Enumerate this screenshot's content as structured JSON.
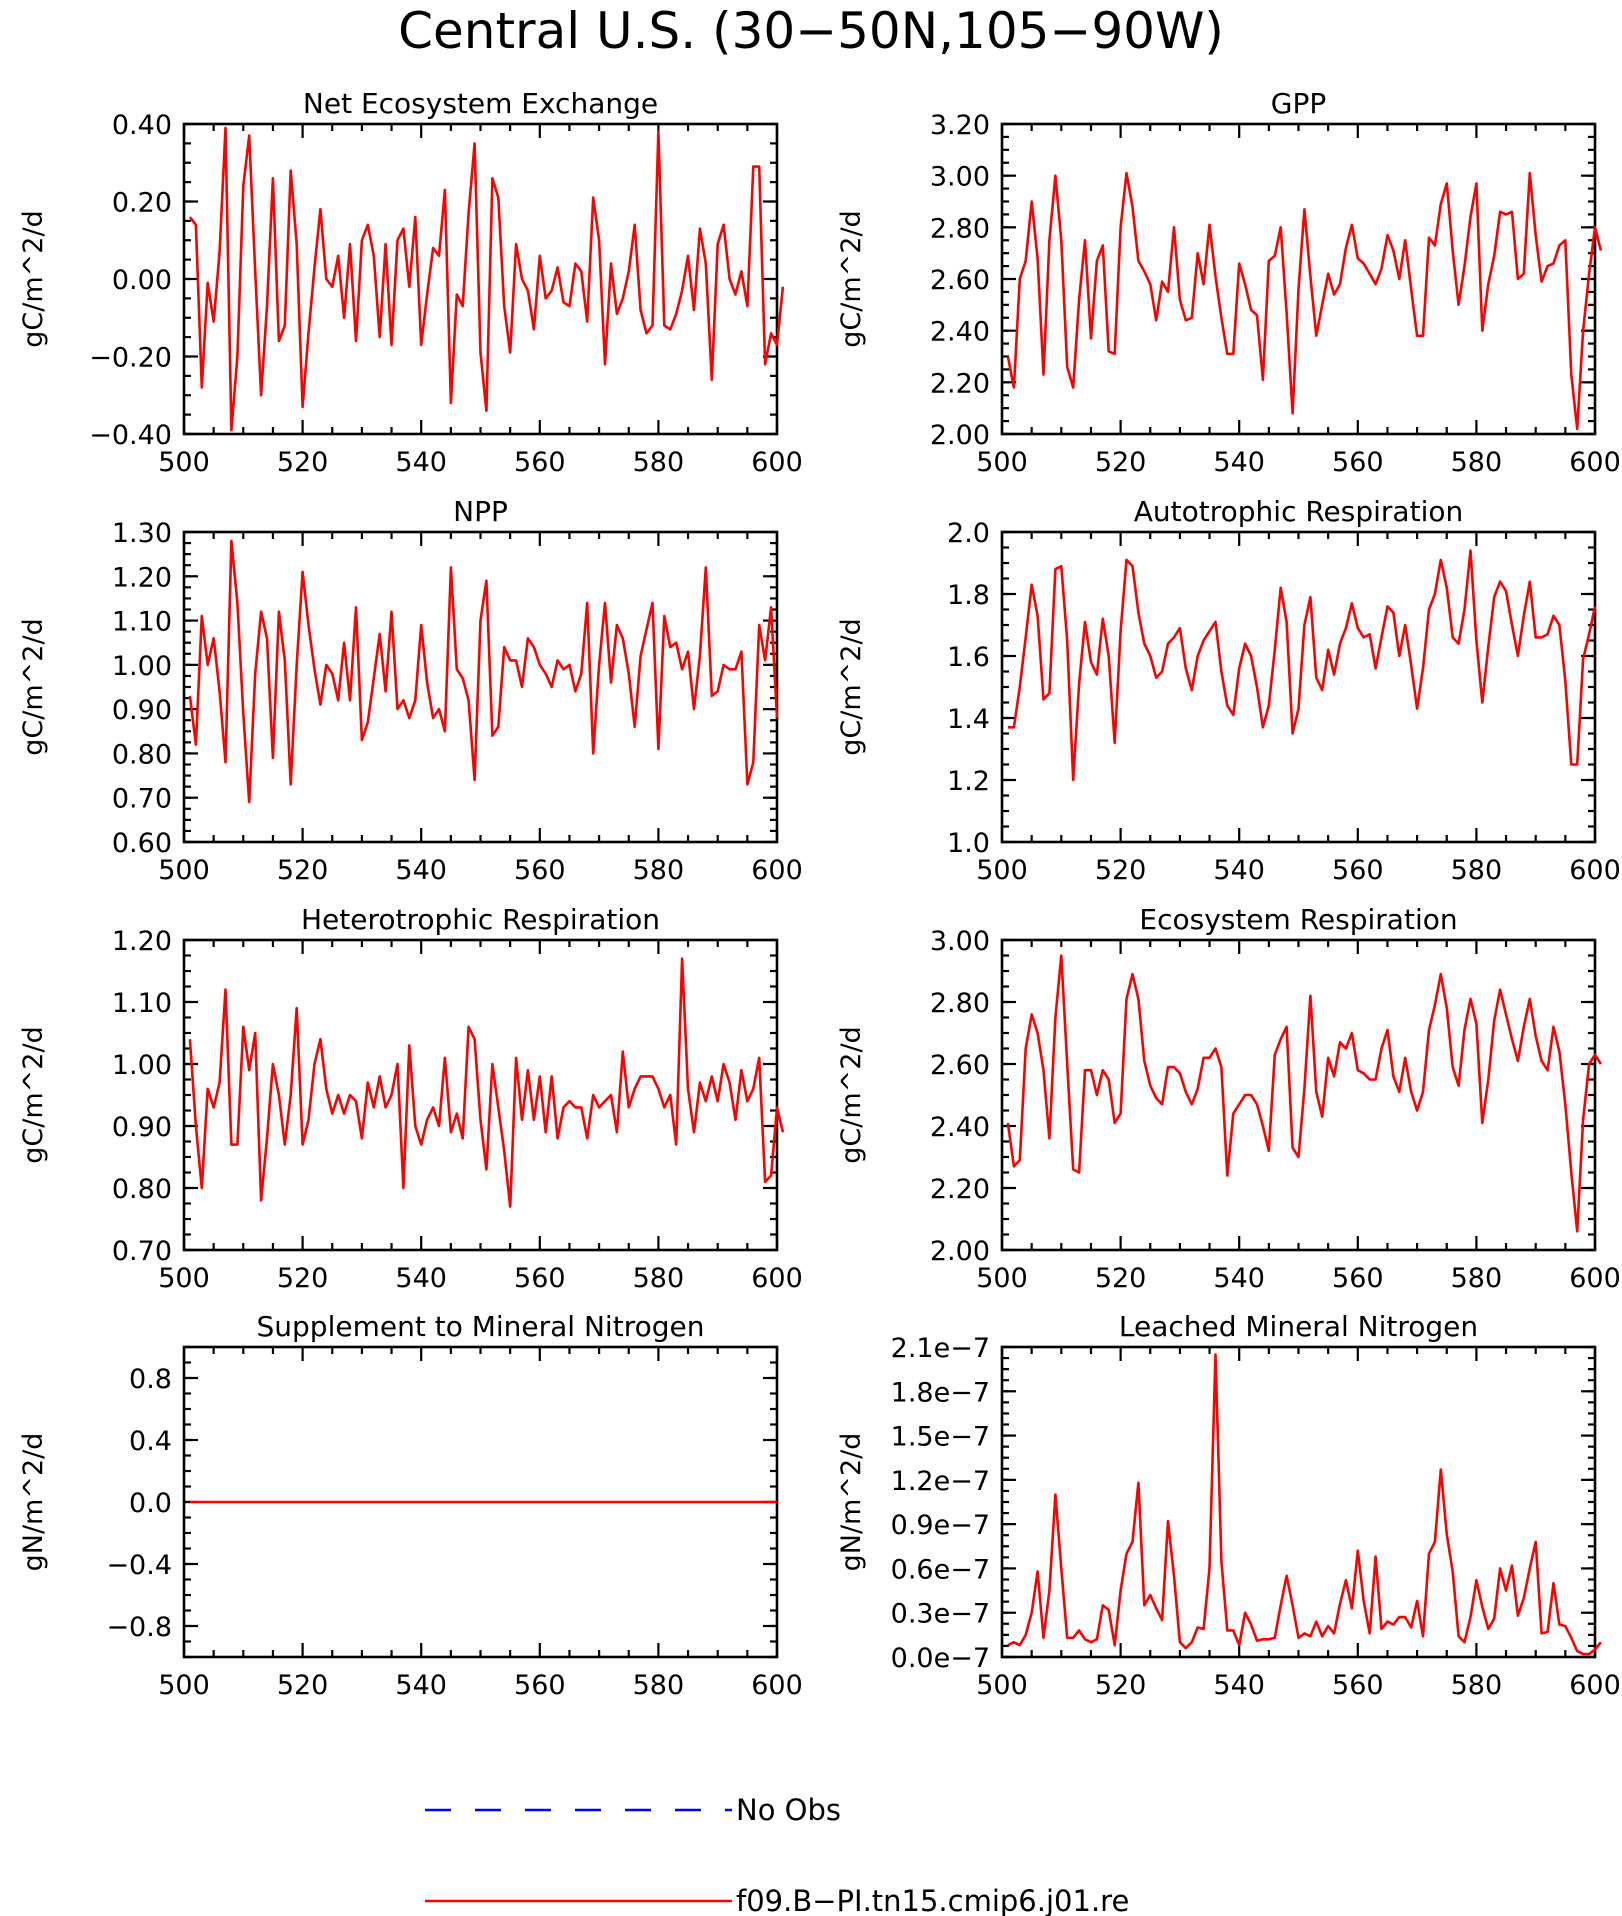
{
  "title": "Central U.S. (30−50N,105−90W)",
  "colors": {
    "model": "#ff0000",
    "obs": "#0000ff"
  },
  "legend": {
    "obs_label": "No Obs",
    "model_label": "f09.B−PI.tn15.cmip6.j01.re"
  },
  "chart_data": [
    {
      "type": "line",
      "title": "Net Ecosystem Exchange",
      "ylabel": "gC/m^2/d",
      "xlim": [
        500,
        600
      ],
      "ylim": [
        -0.4,
        0.4
      ],
      "xticks": [
        "500",
        "520",
        "540",
        "560",
        "580",
        "600"
      ],
      "yticks": [
        "−0.40",
        "−0.20",
        "0.00",
        "0.20",
        "0.40"
      ],
      "series": [
        {
          "values": [
            0.16,
            0.14,
            -0.28,
            -0.01,
            -0.11,
            0.07,
            0.39,
            -0.39,
            -0.2,
            0.24,
            0.37,
            0.02,
            -0.3,
            -0.07,
            0.26,
            -0.16,
            -0.12,
            0.28,
            0.09,
            -0.33,
            -0.14,
            0.03,
            0.18,
            0.0,
            -0.02,
            0.06,
            -0.1,
            0.09,
            -0.16,
            0.1,
            0.14,
            0.06,
            -0.15,
            0.09,
            -0.17,
            0.1,
            0.13,
            -0.02,
            0.16,
            -0.17,
            -0.04,
            0.08,
            0.06,
            0.23,
            -0.32,
            -0.04,
            -0.07,
            0.17,
            0.35,
            -0.19,
            -0.34,
            0.26,
            0.21,
            -0.07,
            -0.19,
            0.09,
            0.0,
            -0.03,
            -0.13,
            0.06,
            -0.05,
            -0.03,
            0.03,
            -0.06,
            -0.07,
            0.04,
            0.02,
            -0.11,
            0.21,
            0.1,
            -0.22,
            0.04,
            -0.09,
            -0.05,
            0.02,
            0.14,
            -0.08,
            -0.14,
            -0.12,
            0.38,
            -0.12,
            -0.13,
            -0.09,
            -0.03,
            0.06,
            -0.08,
            0.13,
            0.04,
            -0.26,
            0.09,
            0.14,
            0.0,
            -0.04,
            0.02,
            -0.07,
            0.29,
            0.29,
            -0.22,
            -0.14,
            -0.17,
            -0.02
          ]
        }
      ]
    },
    {
      "type": "line",
      "title": "GPP",
      "ylabel": "gC/m^2/d",
      "xlim": [
        500,
        600
      ],
      "ylim": [
        2.0,
        3.2
      ],
      "xticks": [
        "500",
        "520",
        "540",
        "560",
        "580",
        "600"
      ],
      "yticks": [
        "2.00",
        "2.20",
        "2.40",
        "2.60",
        "2.80",
        "3.00",
        "3.20"
      ],
      "series": [
        {
          "values": [
            2.3,
            2.18,
            2.6,
            2.67,
            2.9,
            2.68,
            2.23,
            2.75,
            3.0,
            2.75,
            2.26,
            2.18,
            2.52,
            2.75,
            2.37,
            2.67,
            2.73,
            2.32,
            2.31,
            2.8,
            3.01,
            2.88,
            2.67,
            2.63,
            2.58,
            2.44,
            2.59,
            2.55,
            2.8,
            2.52,
            2.44,
            2.45,
            2.7,
            2.58,
            2.81,
            2.61,
            2.45,
            2.31,
            2.31,
            2.66,
            2.58,
            2.48,
            2.46,
            2.21,
            2.67,
            2.69,
            2.8,
            2.47,
            2.08,
            2.56,
            2.87,
            2.61,
            2.38,
            2.5,
            2.62,
            2.54,
            2.58,
            2.72,
            2.81,
            2.68,
            2.66,
            2.62,
            2.58,
            2.64,
            2.77,
            2.71,
            2.6,
            2.75,
            2.56,
            2.38,
            2.38,
            2.76,
            2.73,
            2.89,
            2.97,
            2.71,
            2.5,
            2.65,
            2.84,
            2.97,
            2.4,
            2.58,
            2.69,
            2.86,
            2.85,
            2.86,
            2.6,
            2.62,
            3.01,
            2.77,
            2.59,
            2.65,
            2.66,
            2.73,
            2.75,
            2.23,
            2.02,
            2.4,
            2.62,
            2.8,
            2.71
          ]
        }
      ]
    },
    {
      "type": "line",
      "title": "NPP",
      "ylabel": "gC/m^2/d",
      "xlim": [
        500,
        600
      ],
      "ylim": [
        0.6,
        1.3
      ],
      "xticks": [
        "500",
        "520",
        "540",
        "560",
        "580",
        "600"
      ],
      "yticks": [
        "0.60",
        "0.70",
        "0.80",
        "0.90",
        "1.00",
        "1.10",
        "1.20",
        "1.30"
      ],
      "series": [
        {
          "values": [
            0.93,
            0.82,
            1.11,
            1.0,
            1.06,
            0.94,
            0.78,
            1.28,
            1.14,
            0.89,
            0.69,
            0.98,
            1.12,
            1.06,
            0.79,
            1.12,
            1.01,
            0.73,
            1.0,
            1.21,
            1.09,
            0.99,
            0.91,
            1.0,
            0.98,
            0.92,
            1.05,
            0.92,
            1.13,
            0.83,
            0.87,
            0.97,
            1.07,
            0.94,
            1.12,
            0.9,
            0.92,
            0.88,
            0.92,
            1.09,
            0.96,
            0.88,
            0.9,
            0.85,
            1.22,
            0.99,
            0.97,
            0.92,
            0.74,
            1.1,
            1.19,
            0.84,
            0.86,
            1.04,
            1.01,
            1.01,
            0.95,
            1.06,
            1.04,
            1.0,
            0.98,
            0.95,
            1.01,
            0.99,
            1.0,
            0.94,
            0.98,
            1.14,
            0.8,
            1.0,
            1.14,
            0.96,
            1.09,
            1.06,
            0.98,
            0.86,
            1.02,
            1.08,
            1.14,
            0.81,
            1.11,
            1.04,
            1.05,
            0.99,
            1.03,
            0.9,
            1.02,
            1.22,
            0.93,
            0.94,
            1.0,
            0.99,
            0.99,
            1.03,
            0.73,
            0.78,
            1.09,
            1.01,
            1.13,
            0.88
          ]
        }
      ]
    },
    {
      "type": "line",
      "title": "Autotrophic Respiration",
      "ylabel": "gC/m^2/d",
      "xlim": [
        500,
        600
      ],
      "ylim": [
        1.0,
        2.0
      ],
      "xticks": [
        "500",
        "520",
        "540",
        "560",
        "580",
        "600"
      ],
      "yticks": [
        "1.0",
        "1.2",
        "1.4",
        "1.6",
        "1.8",
        "2.0"
      ],
      "series": [
        {
          "values": [
            1.37,
            1.37,
            1.5,
            1.66,
            1.83,
            1.73,
            1.46,
            1.48,
            1.88,
            1.89,
            1.65,
            1.2,
            1.51,
            1.71,
            1.58,
            1.54,
            1.72,
            1.6,
            1.32,
            1.68,
            1.91,
            1.89,
            1.74,
            1.64,
            1.6,
            1.53,
            1.55,
            1.64,
            1.66,
            1.69,
            1.56,
            1.49,
            1.6,
            1.65,
            1.68,
            1.71,
            1.55,
            1.44,
            1.41,
            1.56,
            1.64,
            1.6,
            1.5,
            1.37,
            1.44,
            1.62,
            1.82,
            1.71,
            1.35,
            1.43,
            1.7,
            1.79,
            1.53,
            1.49,
            1.62,
            1.54,
            1.64,
            1.69,
            1.77,
            1.69,
            1.66,
            1.67,
            1.56,
            1.66,
            1.76,
            1.74,
            1.6,
            1.7,
            1.57,
            1.43,
            1.56,
            1.75,
            1.8,
            1.91,
            1.82,
            1.66,
            1.64,
            1.75,
            1.94,
            1.65,
            1.45,
            1.63,
            1.79,
            1.84,
            1.81,
            1.7,
            1.6,
            1.73,
            1.84,
            1.66,
            1.66,
            1.67,
            1.73,
            1.7,
            1.52,
            1.25,
            1.25,
            1.59,
            1.67,
            1.76
          ]
        }
      ]
    },
    {
      "type": "line",
      "title": "Heterotrophic Respiration",
      "ylabel": "gC/m^2/d",
      "xlim": [
        500,
        600
      ],
      "ylim": [
        0.7,
        1.2
      ],
      "xticks": [
        "500",
        "520",
        "540",
        "560",
        "580",
        "600"
      ],
      "yticks": [
        "0.70",
        "0.80",
        "0.90",
        "1.00",
        "1.10",
        "1.20"
      ],
      "series": [
        {
          "values": [
            1.04,
            0.9,
            0.8,
            0.96,
            0.93,
            0.97,
            1.12,
            0.87,
            0.87,
            1.06,
            0.99,
            1.05,
            0.78,
            0.88,
            1.0,
            0.95,
            0.87,
            0.95,
            1.09,
            0.87,
            0.91,
            1.0,
            1.04,
            0.96,
            0.92,
            0.95,
            0.92,
            0.95,
            0.94,
            0.88,
            0.97,
            0.93,
            0.98,
            0.93,
            0.95,
            1.0,
            0.8,
            1.03,
            0.9,
            0.87,
            0.91,
            0.93,
            0.9,
            1.01,
            0.89,
            0.92,
            0.88,
            1.06,
            1.04,
            0.91,
            0.83,
            1.0,
            0.93,
            0.86,
            0.77,
            1.01,
            0.91,
            0.99,
            0.91,
            0.98,
            0.89,
            0.98,
            0.88,
            0.93,
            0.94,
            0.93,
            0.93,
            0.88,
            0.95,
            0.93,
            0.94,
            0.95,
            0.89,
            1.02,
            0.93,
            0.96,
            0.98,
            0.98,
            0.98,
            0.96,
            0.93,
            0.95,
            0.87,
            1.17,
            0.96,
            0.89,
            0.97,
            0.94,
            0.98,
            0.94,
            1.0,
            0.97,
            0.91,
            0.99,
            0.94,
            0.96,
            1.01,
            0.81,
            0.82,
            0.93,
            0.89
          ]
        }
      ]
    },
    {
      "type": "line",
      "title": "Ecosystem Respiration",
      "ylabel": "gC/m^2/d",
      "xlim": [
        500,
        600
      ],
      "ylim": [
        2.0,
        3.0
      ],
      "xticks": [
        "500",
        "520",
        "540",
        "560",
        "580",
        "600"
      ],
      "yticks": [
        "2.00",
        "2.20",
        "2.40",
        "2.60",
        "2.80",
        "3.00"
      ],
      "series": [
        {
          "values": [
            2.41,
            2.27,
            2.29,
            2.65,
            2.76,
            2.7,
            2.58,
            2.36,
            2.75,
            2.95,
            2.6,
            2.26,
            2.25,
            2.58,
            2.58,
            2.5,
            2.58,
            2.55,
            2.41,
            2.44,
            2.81,
            2.89,
            2.81,
            2.61,
            2.53,
            2.49,
            2.47,
            2.59,
            2.59,
            2.57,
            2.51,
            2.47,
            2.52,
            2.62,
            2.62,
            2.65,
            2.59,
            2.24,
            2.44,
            2.47,
            2.5,
            2.5,
            2.47,
            2.4,
            2.32,
            2.63,
            2.68,
            2.72,
            2.33,
            2.3,
            2.52,
            2.82,
            2.51,
            2.43,
            2.62,
            2.56,
            2.67,
            2.65,
            2.7,
            2.58,
            2.57,
            2.55,
            2.55,
            2.65,
            2.71,
            2.56,
            2.51,
            2.62,
            2.51,
            2.45,
            2.51,
            2.71,
            2.79,
            2.89,
            2.78,
            2.59,
            2.53,
            2.71,
            2.81,
            2.73,
            2.41,
            2.55,
            2.74,
            2.84,
            2.76,
            2.68,
            2.61,
            2.72,
            2.81,
            2.69,
            2.61,
            2.58,
            2.72,
            2.64,
            2.47,
            2.25,
            2.06,
            2.42,
            2.6,
            2.63,
            2.6
          ]
        }
      ]
    },
    {
      "type": "line",
      "title": "Supplement to Mineral Nitrogen",
      "ylabel": "gN/m^2/d",
      "xlim": [
        500,
        600
      ],
      "ylim": [
        -1.0,
        1.0
      ],
      "xticks": [
        "500",
        "520",
        "540",
        "560",
        "580",
        "600"
      ],
      "yticks": [
        "−0.8",
        "−0.4",
        "0.0",
        "0.4",
        "0.8"
      ],
      "series": [
        {
          "x": [
            501,
            600
          ],
          "values": [
            0.0,
            0.0
          ]
        }
      ]
    },
    {
      "type": "line",
      "title": "Leached Mineral Nitrogen",
      "ylabel": "gN/m^2/d",
      "xlim": [
        500,
        600
      ],
      "ylim": [
        0.0,
        2.1e-07
      ],
      "xticks": [
        "500",
        "520",
        "540",
        "560",
        "580",
        "600"
      ],
      "yticks": [
        "0.0e−7",
        "0.3e−7",
        "0.6e−7",
        "0.9e−7",
        "1.2e−7",
        "1.5e−7",
        "1.8e−7",
        "2.1e−7"
      ],
      "series": [
        {
          "values": [
            8e-09,
            1e-08,
            8e-09,
            1.5e-08,
            3e-08,
            5.8e-08,
            1.3e-08,
            4.5e-08,
            1.1e-07,
            6e-08,
            1.3e-08,
            1.3e-08,
            1.8e-08,
            1.2e-08,
            1e-08,
            1.2e-08,
            3.5e-08,
            3.2e-08,
            8e-09,
            4.5e-08,
            7e-08,
            7.8e-08,
            1.18e-07,
            3.5e-08,
            4.2e-08,
            3.3e-08,
            2.5e-08,
            9.2e-08,
            5.5e-08,
            1e-08,
            6e-09,
            1e-08,
            2e-08,
            1.9e-08,
            6e-08,
            2.05e-07,
            6.5e-08,
            1.8e-08,
            1.8e-08,
            8e-09,
            3e-08,
            2.2e-08,
            1.1e-08,
            1.2e-08,
            1.2e-08,
            1.3e-08,
            3.5e-08,
            5.5e-08,
            3.5e-08,
            1.3e-08,
            1.6e-08,
            1.4e-08,
            2.4e-08,
            1.4e-08,
            2.1e-08,
            1.6e-08,
            3.6e-08,
            5.2e-08,
            3.3e-08,
            7.2e-08,
            3.8e-08,
            1.6e-08,
            6.8e-08,
            1.9e-08,
            2.4e-08,
            2.2e-08,
            2.7e-08,
            2.7e-08,
            2e-08,
            3.8e-08,
            1.4e-08,
            7e-08,
            7.8e-08,
            1.27e-07,
            8.3e-08,
            5.8e-08,
            1.4e-08,
            1e-08,
            2.7e-08,
            5.2e-08,
            3.4e-08,
            1.9e-08,
            2.6e-08,
            6e-08,
            4.5e-08,
            6.2e-08,
            2.8e-08,
            4e-08,
            6e-08,
            7.8e-08,
            1.6e-08,
            1.7e-08,
            5e-08,
            2.2e-08,
            2.1e-08,
            1.3e-08,
            4e-09,
            2e-09,
            2e-09,
            5e-09,
            1e-08
          ]
        }
      ]
    }
  ]
}
